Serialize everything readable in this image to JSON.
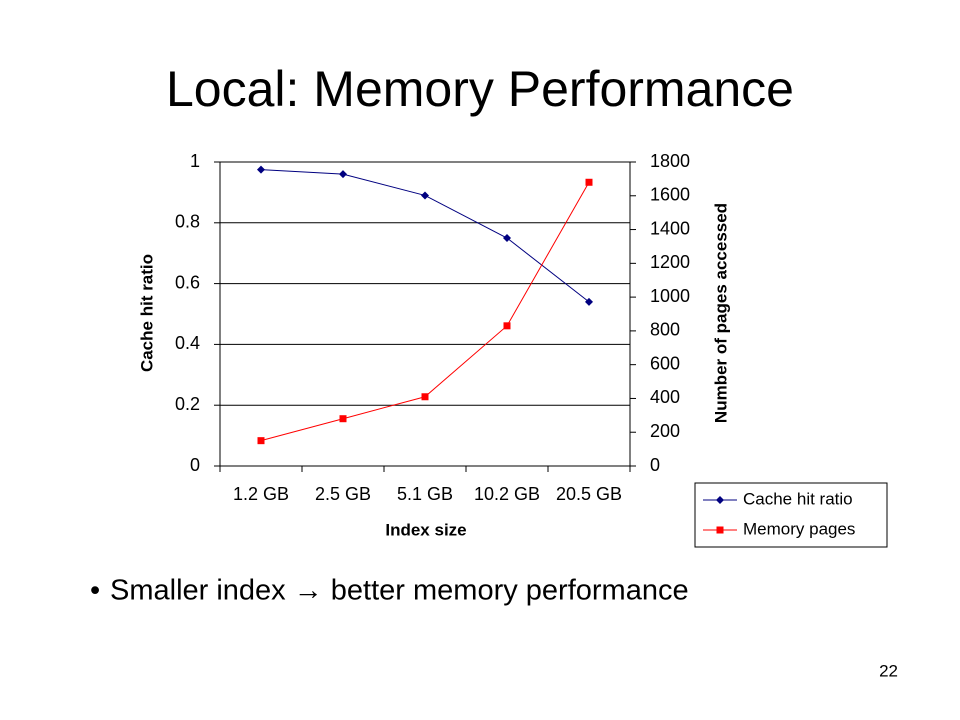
{
  "slide": {
    "title": "Local: Memory Performance",
    "bullet": "Smaller index → better memory performance",
    "page_number": "22"
  },
  "chart_data": {
    "type": "line",
    "categories": [
      "1.2 GB",
      "2.5 GB",
      "5.1 GB",
      "10.2 GB",
      "20.5 GB"
    ],
    "x_label": "Index size",
    "y_label": "Cache hit ratio",
    "y2_label": "Number of pages accessed",
    "ylim": [
      0,
      1
    ],
    "yticks": [
      0,
      0.2,
      0.4,
      0.6,
      0.8,
      1
    ],
    "y2lim": [
      0,
      1800
    ],
    "y2ticks": [
      0,
      200,
      400,
      600,
      800,
      1000,
      1200,
      1400,
      1600,
      1800
    ],
    "grid": true,
    "legend": "bottom-right",
    "series": [
      {
        "name": "Cache hit ratio",
        "color": "#000080",
        "marker": "diamond",
        "values": [
          0.975,
          0.96,
          0.89,
          0.75,
          0.54
        ]
      },
      {
        "name": "Memory pages",
        "color": "#ff0000",
        "marker": "square",
        "axis": "y2",
        "values": [
          150,
          280,
          410,
          830,
          1680
        ]
      }
    ]
  }
}
